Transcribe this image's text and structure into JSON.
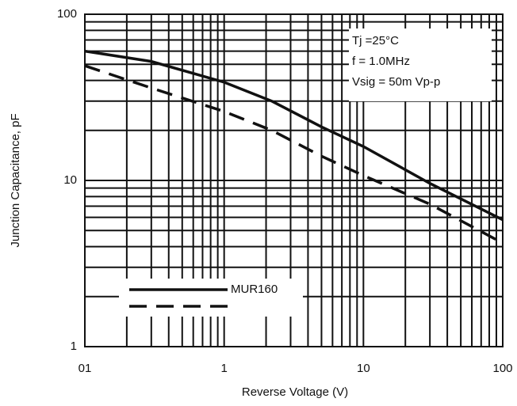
{
  "chart_data": {
    "type": "line",
    "log_x": true,
    "log_y": true,
    "grid": true,
    "minor_grid": true,
    "x_label": "Reverse Voltage (V)",
    "y_label": "Junction Capacitance, pF",
    "xlim": [
      0.1,
      100
    ],
    "xticks": [
      {
        "value": 0.1,
        "label": "01"
      },
      1,
      10,
      100
    ],
    "ylim": [
      1,
      100
    ],
    "yticks": [
      1,
      10,
      100
    ],
    "x": [
      0.1,
      0.3,
      1,
      2.2,
      5,
      10,
      30,
      100
    ],
    "series": [
      {
        "name": "MUR160",
        "color": "#111",
        "dash": false,
        "values": [
          60,
          52,
          39,
          30,
          21,
          16,
          9.6,
          5.8
        ]
      },
      {
        "color": "#111",
        "dash": true,
        "values": [
          49,
          36,
          26,
          20,
          14,
          10.7,
          7.2,
          4.2
        ]
      }
    ],
    "annotation": [
      "Tj =25°C",
      "f = 1.0MHz",
      "Vsig = 50m Vp-p"
    ]
  }
}
